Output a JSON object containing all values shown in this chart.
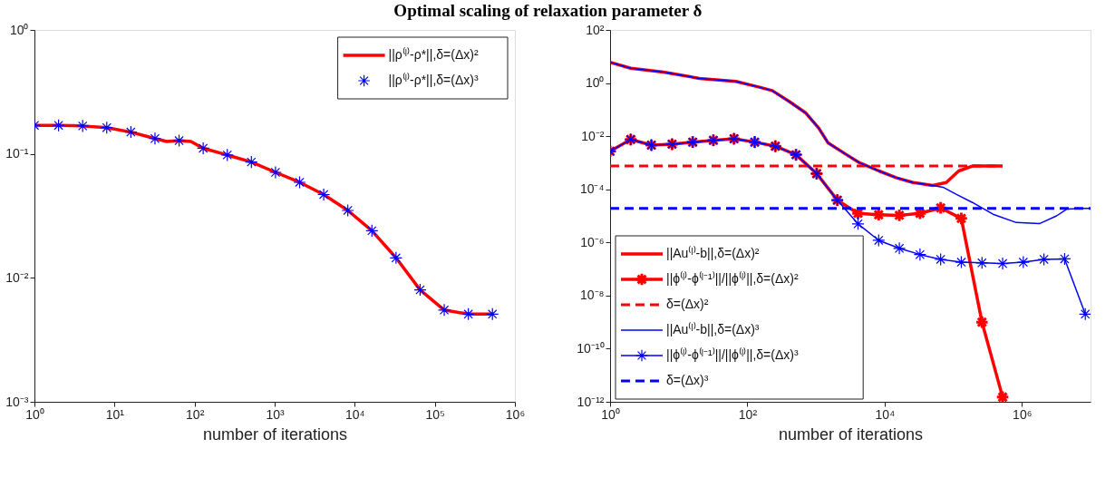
{
  "chart_data": [
    {
      "type": "line",
      "title": "Optimal scaling of relaxation parameter δ",
      "xlabel": "number of iterations",
      "log": "xy",
      "legend": "top right",
      "grid": false,
      "x": [
        1,
        2,
        4,
        8,
        16,
        32,
        64,
        128,
        256,
        512,
        1024,
        2048,
        4096,
        8192,
        16384,
        32768,
        65536,
        131072,
        262144,
        524288
      ],
      "xlim": [
        1,
        1000000
      ],
      "ylim": [
        0.001,
        1
      ],
      "xticks": [
        {
          "value": 1,
          "label": "10⁰"
        },
        {
          "value": 10,
          "label": "10¹"
        },
        {
          "value": 100,
          "label": "10²"
        },
        {
          "value": 1000,
          "label": "10³"
        },
        {
          "value": 10000,
          "label": "10⁴"
        },
        {
          "value": 100000,
          "label": "10⁵"
        },
        {
          "value": 1000000,
          "label": "10⁶"
        }
      ],
      "yticks": [
        {
          "value": 0.001,
          "label": "10⁻³"
        },
        {
          "value": 0.01,
          "label": "10⁻²"
        },
        {
          "value": 0.1,
          "label": "10⁻¹"
        },
        {
          "value": 1,
          "label": "10⁰"
        }
      ],
      "series": [
        {
          "name": "||ρ⁽ˡ⁾-ρ*||,δ=(Δx)²",
          "color": "#ff0000",
          "marker": "none",
          "line_style": "solid",
          "x": [
            1,
            2,
            4,
            8,
            16,
            32,
            45,
            64,
            90,
            128,
            256,
            512,
            1024,
            2048,
            4096,
            8192,
            16384,
            32768,
            65536,
            131072,
            262144,
            524288
          ],
          "values": [
            0.17,
            0.17,
            0.168,
            0.163,
            0.15,
            0.133,
            0.126,
            0.128,
            0.126,
            0.111,
            0.098,
            0.086,
            0.071,
            0.059,
            0.047,
            0.035,
            0.024,
            0.0145,
            0.008,
            0.0055,
            0.0051,
            0.0051
          ]
        },
        {
          "name": "||ρ⁽ˡ⁾-ρ*||,δ=(Δx)³",
          "type": "scatter",
          "color": "#0000ff",
          "marker": "cross",
          "values": [
            0.17,
            0.17,
            0.168,
            0.163,
            0.15,
            0.133,
            0.128,
            0.111,
            0.098,
            0.086,
            0.071,
            0.059,
            0.047,
            0.035,
            0.024,
            0.0145,
            0.008,
            0.0055,
            0.0051,
            0.0051
          ]
        }
      ]
    },
    {
      "type": "line",
      "xlabel": "number of iterations",
      "log": "xy",
      "legend": "bottom left",
      "grid": false,
      "x": [
        1,
        2,
        4,
        8,
        16,
        32,
        64,
        128,
        256,
        512,
        1024,
        2048,
        4096,
        8192,
        16384,
        32768,
        65536,
        131072,
        262144,
        524288,
        1048576,
        2097152,
        4194304,
        8388608
      ],
      "xlim": [
        1,
        10000000
      ],
      "ylim": [
        1e-12,
        100
      ],
      "xticks": [
        {
          "value": 1,
          "label": "10⁰"
        },
        {
          "value": 100,
          "label": "10²"
        },
        {
          "value": 10000,
          "label": "10⁴"
        },
        {
          "value": 1000000,
          "label": "10⁶"
        }
      ],
      "yticks": [
        {
          "value": 1e-12,
          "label": "10⁻¹²"
        },
        {
          "value": 1e-10,
          "label": "10⁻¹⁰"
        },
        {
          "value": 1e-08,
          "label": "10⁻⁸"
        },
        {
          "value": 1e-06,
          "label": "10⁻⁶"
        },
        {
          "value": 0.0001,
          "label": "10⁻⁴"
        },
        {
          "value": 0.01,
          "label": "10⁻²"
        },
        {
          "value": 1,
          "label": "10⁰"
        },
        {
          "value": 100,
          "label": "10²"
        }
      ],
      "series": [
        {
          "name": "||Au⁽ˡ⁾-b||,δ=(Δx)²",
          "color": "#ff0000",
          "marker": "none",
          "line_style": "solid",
          "x": [
            1,
            2,
            6,
            20,
            68,
            150,
            230,
            410,
            710,
            1100,
            1500,
            2800,
            4300,
            8300,
            15000,
            26000,
            50000,
            79000,
            120000,
            190000,
            520000
          ],
          "values": [
            6,
            3.6,
            2.6,
            1.5,
            1.15,
            0.7,
            0.52,
            0.2,
            0.075,
            0.02,
            0.0056,
            0.002,
            0.001,
            0.00049,
            0.00027,
            0.00018,
            0.00014,
            0.00018,
            0.00049,
            0.00075,
            0.00075
          ]
        },
        {
          "name": "||ϕ⁽ˡ⁾-ϕ⁽ˡ⁻¹⁾||/||ϕ⁽ˡ⁾||,δ=(Δx)²",
          "color": "#ff0000",
          "marker": "cross",
          "line_style": "solid",
          "x": [
            1,
            2,
            4,
            8,
            16,
            32,
            64,
            128,
            256,
            512,
            1024,
            2048,
            4096,
            8192,
            16384,
            32768,
            65536,
            131072,
            262144,
            524288
          ],
          "values": [
            0.0027,
            0.0075,
            0.0046,
            0.005,
            0.006,
            0.007,
            0.008,
            0.006,
            0.0042,
            0.002,
            0.00039,
            3.9e-05,
            1.25e-05,
            1.1e-05,
            1.05e-05,
            1.25e-05,
            2e-05,
            8e-06,
            1e-09,
            1.5e-12
          ]
        },
        {
          "name": "δ=(Δx)²",
          "color": "#ff0000",
          "marker": "none",
          "line_style": "dashed",
          "x": [
            1,
            524288
          ],
          "values": [
            0.00075,
            0.00075
          ]
        },
        {
          "name": "||Au⁽ˡ⁾-b||,δ=(Δx)³",
          "color": "#0000ff",
          "marker": "none",
          "line_style": "solid",
          "x": [
            1,
            2,
            6,
            20,
            68,
            150,
            230,
            410,
            710,
            1100,
            1500,
            2800,
            4300,
            8300,
            15000,
            26000,
            50000,
            71000,
            110000,
            190000,
            380000,
            830000,
            1800000,
            3200000,
            4500000,
            7700000,
            10000000
          ],
          "values": [
            6,
            3.6,
            2.6,
            1.5,
            1.15,
            0.7,
            0.52,
            0.2,
            0.075,
            0.02,
            0.0056,
            0.002,
            0.001,
            0.00049,
            0.00027,
            0.00018,
            0.00014,
            0.00012,
            6.5e-05,
            3.2e-05,
            1.15e-05,
            5.6e-06,
            5.1e-06,
            1e-05,
            1.8e-05,
            1.9e-05,
            1.9e-05
          ]
        },
        {
          "name": "||ϕ⁽ˡ⁾-ϕ⁽ˡ⁻¹⁾||/||ϕ⁽ˡ⁾||,δ=(Δx)³",
          "color": "#0000ff",
          "marker": "cross",
          "line_style": "solid",
          "values": [
            0.0027,
            0.0075,
            0.0046,
            0.005,
            0.006,
            0.007,
            0.008,
            0.006,
            0.0042,
            0.002,
            0.00039,
            3.9e-05,
            5e-06,
            1.2e-06,
            6e-07,
            3.5e-07,
            2.3e-07,
            1.8e-07,
            1.7e-07,
            1.6e-07,
            1.8e-07,
            2.3e-07,
            2.4e-07,
            2e-09
          ]
        },
        {
          "name": "δ=(Δx)³",
          "color": "#0000ff",
          "marker": "none",
          "line_style": "dashed",
          "x": [
            1,
            10000000
          ],
          "values": [
            1.9e-05,
            1.9e-05
          ]
        }
      ]
    }
  ]
}
